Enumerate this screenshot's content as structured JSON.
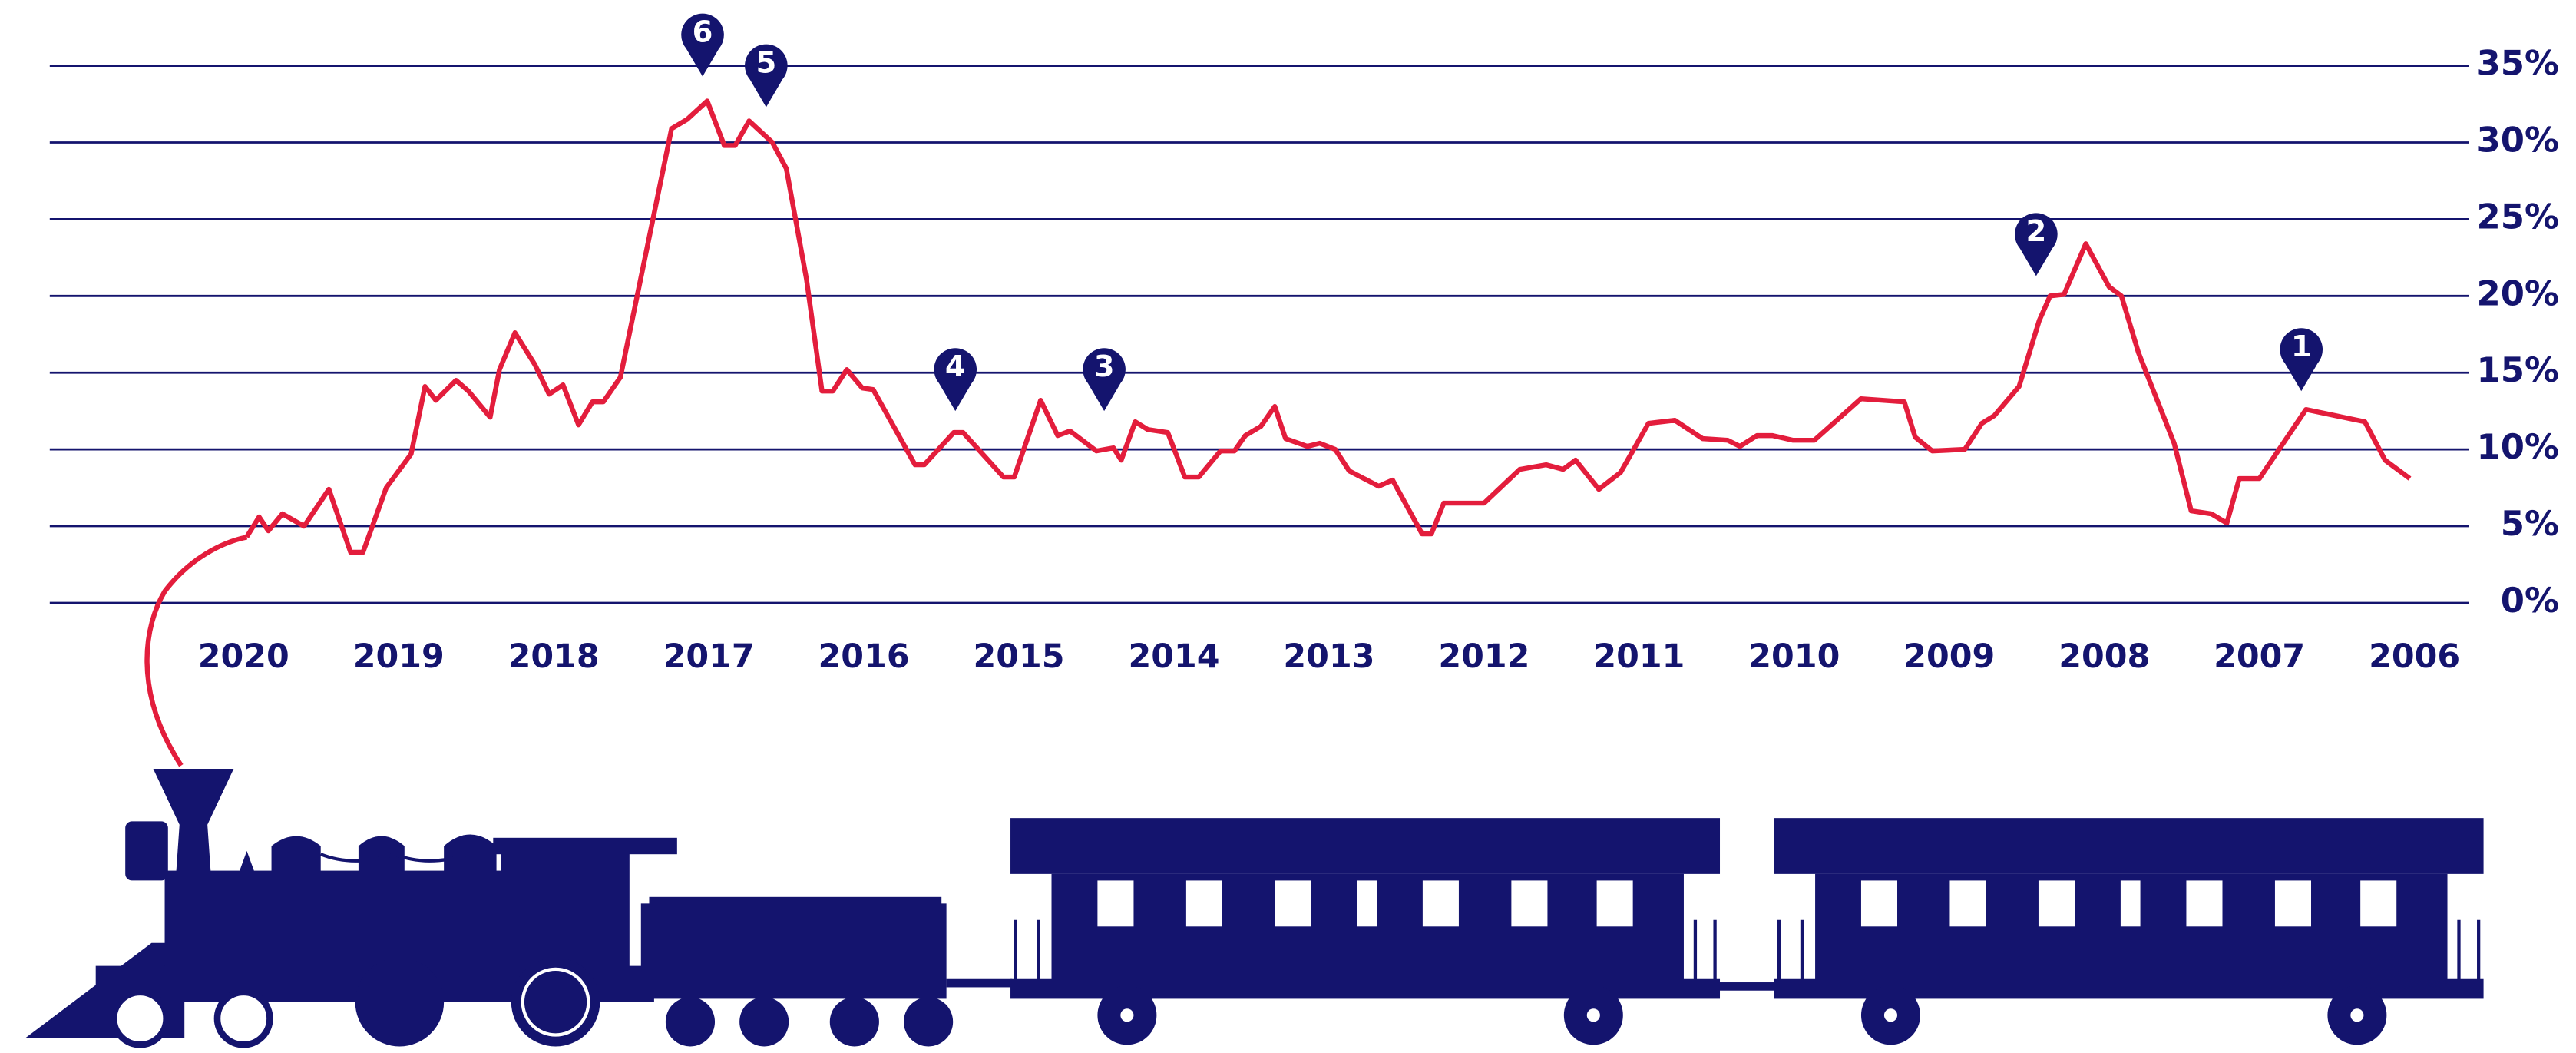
{
  "chart_data": {
    "type": "line",
    "color": "#e31d3c",
    "axis_color": "#14146e",
    "grid": true,
    "xlim": [
      2021.25,
      2005.65
    ],
    "xticks": [
      2020,
      2019,
      2018,
      2017,
      2016,
      2015,
      2014,
      2013,
      2012,
      2011,
      2010,
      2009,
      2008,
      2007,
      2006
    ],
    "ylim": [
      0,
      35
    ],
    "yticks": [
      {
        "value": 0,
        "label": "0%"
      },
      {
        "value": 5,
        "label": "5%"
      },
      {
        "value": 10,
        "label": "10%"
      },
      {
        "value": 15,
        "label": "15%"
      },
      {
        "value": 20,
        "label": "20%"
      },
      {
        "value": 25,
        "label": "25%"
      },
      {
        "value": 30,
        "label": "30%"
      },
      {
        "value": 35,
        "label": "35%"
      }
    ],
    "x": [
      2019.98,
      2019.9,
      2019.84,
      2019.75,
      2019.61,
      2019.45,
      2019.31,
      2019.23,
      2019.08,
      2018.92,
      2018.83,
      2018.76,
      2018.63,
      2018.55,
      2018.41,
      2018.35,
      2018.25,
      2018.12,
      2018.03,
      2017.94,
      2017.84,
      2017.75,
      2017.68,
      2017.57,
      2017.24,
      2017.14,
      2017.01,
      2016.9,
      2016.83,
      2016.74,
      2016.59,
      2016.5,
      2016.37,
      2016.27,
      2016.2,
      2016.11,
      2016.01,
      2015.94,
      2015.67,
      2015.61,
      2015.42,
      2015.36,
      2015.1,
      2015.03,
      2014.86,
      2014.75,
      2014.67,
      2014.5,
      2014.39,
      2014.34,
      2014.25,
      2014.17,
      2014.04,
      2013.93,
      2013.84,
      2013.7,
      2013.61,
      2013.54,
      2013.44,
      2013.35,
      2013.28,
      2013.14,
      2013.06,
      2012.96,
      2012.87,
      2012.68,
      2012.59,
      2012.4,
      2012.34,
      2012.26,
      2012.0,
      2011.77,
      2011.6,
      2011.49,
      2011.41,
      2011.26,
      2011.12,
      2010.94,
      2010.77,
      2010.59,
      2010.43,
      2010.35,
      2010.24,
      2010.14,
      2010.01,
      2009.87,
      2009.57,
      2009.29,
      2009.22,
      2009.11,
      2008.9,
      2008.79,
      2008.71,
      2008.55,
      2008.42,
      2008.35,
      2008.26,
      2008.12,
      2007.97,
      2007.89,
      2007.78,
      2007.55,
      2007.44,
      2007.31,
      2007.21,
      2007.13,
      2007.0,
      2006.7,
      2006.32,
      2006.19,
      2006.03
    ],
    "values": [
      4.3,
      5.6,
      4.7,
      5.8,
      5.0,
      7.4,
      3.3,
      3.3,
      7.5,
      9.7,
      14.1,
      13.2,
      14.5,
      13.8,
      12.1,
      15.2,
      17.6,
      15.5,
      13.6,
      14.2,
      11.6,
      13.1,
      13.1,
      14.7,
      30.9,
      31.5,
      32.7,
      29.8,
      29.8,
      31.4,
      30.0,
      28.3,
      21.1,
      13.8,
      13.8,
      15.2,
      14.0,
      13.9,
      9.0,
      9.0,
      11.1,
      11.1,
      8.2,
      8.2,
      13.2,
      10.9,
      11.2,
      9.9,
      10.1,
      9.3,
      11.8,
      11.3,
      11.1,
      8.2,
      8.2,
      9.9,
      9.9,
      10.9,
      11.5,
      12.8,
      10.7,
      10.2,
      10.4,
      10.0,
      8.6,
      7.6,
      8.0,
      4.5,
      4.5,
      6.5,
      6.5,
      8.7,
      9.0,
      8.7,
      9.3,
      7.4,
      8.5,
      11.7,
      11.9,
      10.7,
      10.6,
      10.2,
      10.9,
      10.9,
      10.6,
      10.6,
      13.3,
      13.1,
      10.8,
      9.9,
      10.0,
      11.7,
      12.2,
      14.1,
      18.4,
      20.0,
      20.1,
      23.4,
      20.6,
      20.0,
      16.3,
      10.4,
      6.0,
      5.8,
      5.2,
      8.1,
      8.1,
      12.6,
      11.8,
      9.3,
      8.1
    ],
    "annotations": [
      {
        "text": "6",
        "x": 2017.04,
        "y": 34.3
      },
      {
        "text": "5",
        "x": 2016.63,
        "y": 32.3
      },
      {
        "text": "4",
        "x": 2015.41,
        "y": 12.5
      },
      {
        "text": "3",
        "x": 2014.45,
        "y": 12.5
      },
      {
        "text": "2",
        "x": 2008.44,
        "y": 21.3
      },
      {
        "text": "1",
        "x": 2006.73,
        "y": 13.8
      }
    ]
  }
}
